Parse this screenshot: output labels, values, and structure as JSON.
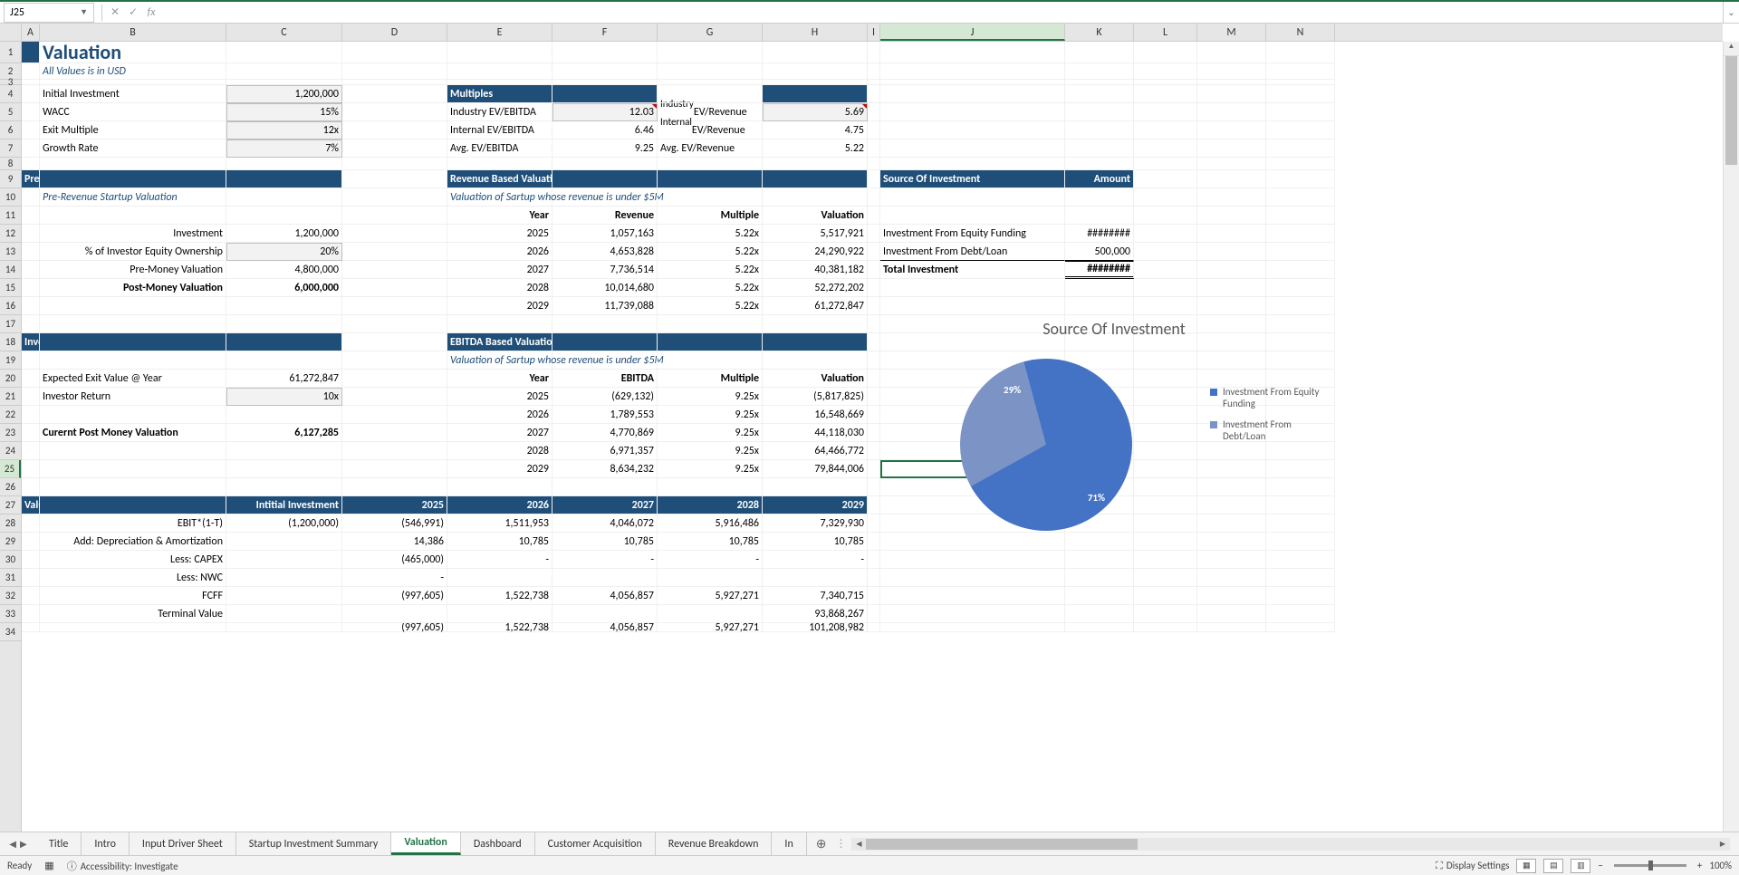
{
  "nameBox": "J25",
  "formula": "",
  "colWidths": {
    "A": 20,
    "B": 206,
    "C": 128,
    "D": 116,
    "E": 116,
    "F": 116,
    "G": 116,
    "H": 116,
    "I": 14,
    "J": 204,
    "K": 76,
    "L": 70,
    "M": 76,
    "N": 76
  },
  "columns": [
    "A",
    "B",
    "C",
    "D",
    "E",
    "F",
    "G",
    "H",
    "I",
    "J",
    "K",
    "L",
    "M",
    "N"
  ],
  "activeCol": "J",
  "activeRow": 25,
  "rowHeights": {
    "1": 24,
    "2": 18,
    "3": 6,
    "8": 14,
    "default": 20
  },
  "title": "Valuation",
  "subtitle": "All Values is in USD",
  "inputs": {
    "initialInvestment": {
      "label": "Initial Investment",
      "value": "1,200,000"
    },
    "wacc": {
      "label": "WACC",
      "value": "15%"
    },
    "exitMultiple": {
      "label": "Exit Multiple",
      "value": "12x"
    },
    "growthRate": {
      "label": "Growth Rate",
      "value": "7%"
    }
  },
  "multiples": {
    "header": "Multiples",
    "r1": {
      "lbl1": "Industry EV/EBITDA",
      "v1": "12.03",
      "lbl2": "Industry EV/Revenue",
      "v2": "5.69"
    },
    "r2": {
      "lbl1": "Internal EV/EBITDA",
      "v1": "6.46",
      "lbl2": "Internal EV/Revenue",
      "v2": "4.75"
    },
    "r3": {
      "lbl1": "Avg. EV/EBITDA",
      "v1": "9.25",
      "lbl2": "Avg. EV/Revenue",
      "v2": "5.22"
    }
  },
  "prepost": {
    "header": "Pre vs Post Money Valuation (Based on Investment)",
    "sub": "Pre-Revenue Startup Valuation",
    "rows": [
      {
        "label": "Investment",
        "value": "1,200,000",
        "bold": false,
        "input": false
      },
      {
        "label": "% of Investor Equity Ownership",
        "value": "20%",
        "bold": false,
        "input": true
      },
      {
        "label": "Pre-Money Valuation",
        "value": "4,800,000",
        "bold": false,
        "input": false
      },
      {
        "label": "Post-Money Valuation",
        "value": "6,000,000",
        "bold": true,
        "input": false
      }
    ]
  },
  "revval": {
    "header": "Revenue Based Valuation (Revenue Multiples)",
    "sub": "Valuation of Sartup whose revenue is under $5M",
    "cols": [
      "Year",
      "Revenue",
      "Multiple",
      "Valuation"
    ],
    "rows": [
      [
        "2025",
        "1,057,163",
        "5.22x",
        "5,517,921"
      ],
      [
        "2026",
        "4,653,828",
        "5.22x",
        "24,290,922"
      ],
      [
        "2027",
        "7,736,514",
        "5.22x",
        "40,381,182"
      ],
      [
        "2028",
        "10,014,680",
        "5.22x",
        "52,272,202"
      ],
      [
        "2029",
        "11,739,088",
        "5.22x",
        "61,272,847"
      ]
    ]
  },
  "source": {
    "header1": "Source Of Investment",
    "header2": "Amount",
    "r1": {
      "label": "Investment From Equity Funding",
      "value": "########"
    },
    "r2": {
      "label": "Investment From Debt/Loan",
      "value": "500,000"
    },
    "r3": {
      "label": "Total Investment",
      "value": "########"
    }
  },
  "investor": {
    "header": "Investor's Valuation",
    "rows": [
      {
        "label": "Expected Exit Value @ Year",
        "value": "61,272,847",
        "bold": false,
        "input": false
      },
      {
        "label": "Investor Return",
        "value": "10x",
        "bold": false,
        "input": true
      },
      {
        "label": "",
        "value": "",
        "bold": false,
        "input": false
      },
      {
        "label": "Curernt Post Money Valuation",
        "value": "6,127,285",
        "bold": true,
        "input": false
      }
    ]
  },
  "ebitda": {
    "header": "EBITDA Based Valuation (EBITDA Multiples)",
    "sub": "Valuation of Sartup whose revenue is under $5M",
    "cols": [
      "Year",
      "EBITDA",
      "Multiple",
      "Valuation"
    ],
    "rows": [
      [
        "2025",
        "(629,132)",
        "9.25x",
        "(5,817,825)"
      ],
      [
        "2026",
        "1,789,553",
        "9.25x",
        "16,548,669"
      ],
      [
        "2027",
        "4,770,869",
        "9.25x",
        "44,118,030"
      ],
      [
        "2028",
        "6,971,357",
        "9.25x",
        "64,466,772"
      ],
      [
        "2029",
        "8,634,232",
        "9.25x",
        "79,844,006"
      ]
    ]
  },
  "dcf": {
    "header": "Valuaton Using DCF Model",
    "col2": "Intitial Investment",
    "years": [
      "2025",
      "2026",
      "2027",
      "2028",
      "2029"
    ],
    "rows": [
      {
        "label": "EBIT*(1-T)",
        "init": "(1,200,000)",
        "v": [
          "(546,991)",
          "1,511,953",
          "4,046,072",
          "5,916,486",
          "7,329,930"
        ]
      },
      {
        "label": "Add: Depreciation & Amortization",
        "init": "",
        "v": [
          "14,386",
          "10,785",
          "10,785",
          "10,785",
          "10,785"
        ]
      },
      {
        "label": "Less: CAPEX",
        "init": "",
        "v": [
          "(465,000)",
          "-",
          "-",
          "-",
          "-"
        ]
      },
      {
        "label": "Less: NWC",
        "init": "",
        "v": [
          "-",
          "",
          "",
          "",
          ""
        ]
      },
      {
        "label": "FCFF",
        "init": "",
        "v": [
          "(997,605)",
          "1,522,738",
          "4,056,857",
          "5,927,271",
          "7,340,715"
        ]
      },
      {
        "label": "Terminal Value",
        "init": "",
        "v": [
          "",
          "",
          "",
          "",
          "93,868,267"
        ]
      },
      {
        "label": "",
        "init": "",
        "v": [
          "(997,605)",
          "1,522,738",
          "4,056,857",
          "5,927,271",
          "101,208,982"
        ],
        "partial": true
      }
    ]
  },
  "chart": {
    "title": "Source Of Investment",
    "slices": [
      {
        "label": "Investment From Equity Funding",
        "pct": 71,
        "color": "#4472c4"
      },
      {
        "label": "Investment From Debt/Loan",
        "pct": 29,
        "color": "#7b93c5"
      }
    ],
    "labels": {
      "s1": "71%",
      "s2": "29%"
    },
    "legend": [
      "Investment From Equity Funding",
      "Investment From Debt/Loan"
    ]
  },
  "tabs": [
    "Title",
    "Intro",
    "Input Driver Sheet",
    "Startup Investment Summary",
    "Valuation",
    "Dashboard",
    "Customer Acquisition",
    "Revenue Breakdown",
    "In"
  ],
  "activeTab": "Valuation",
  "status": {
    "ready": "Ready",
    "access": "Accessibility: Investigate",
    "display": "Display Settings",
    "zoom": "100%"
  }
}
